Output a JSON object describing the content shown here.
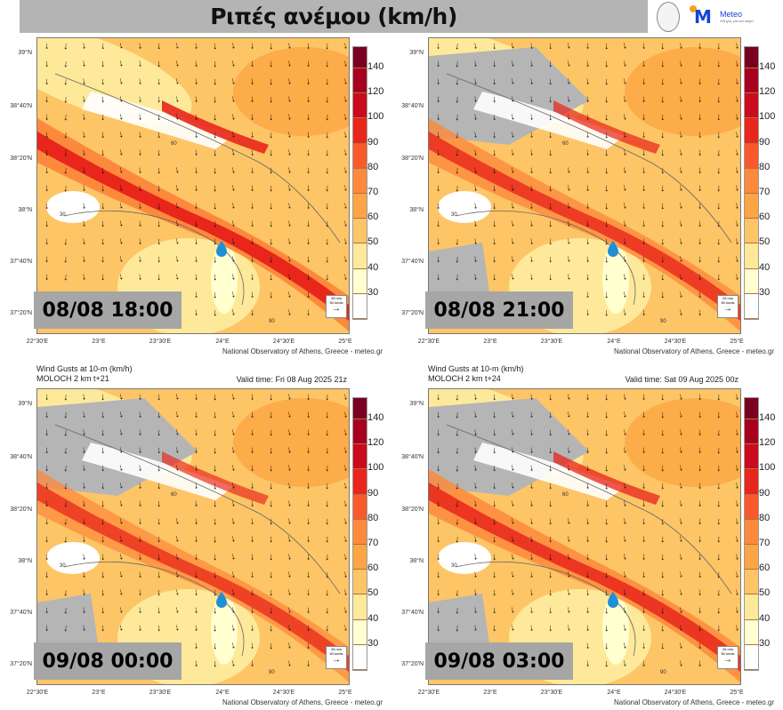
{
  "header": {
    "title": "Ριπές ανέμου (km/h)",
    "logo_text": "Meteo",
    "logo_sub": "Οδηγός για τον καιρό"
  },
  "colorbar": {
    "levels": [
      "140",
      "120",
      "100",
      "90",
      "80",
      "70",
      "60",
      "50",
      "40",
      "30"
    ],
    "colors": [
      "#7a0020",
      "#a8001f",
      "#cc0a1e",
      "#e8261b",
      "#f85a2c",
      "#fd8a3c",
      "#fda544",
      "#fdc566",
      "#fee99a",
      "#ffffcf",
      "#ffffff"
    ]
  },
  "lat_labels": [
    "39°N",
    "38°40'N",
    "38°20'N",
    "38°N",
    "37°40'N",
    "37°20'N"
  ],
  "lon_labels": [
    "22°30'E",
    "23°E",
    "23°30'E",
    "24°E",
    "24°30'E",
    "25°E"
  ],
  "credit": "National Observatory of Athens, Greece - meteo.gr",
  "scale_label": {
    "ms": "26 m/s",
    "knots": "50 knots",
    "arrow": "→"
  },
  "contour_labels": [
    "30",
    "60",
    "90"
  ],
  "panels": [
    {
      "date": "08/08 18:00"
    },
    {
      "date": "08/08 21:00"
    },
    {
      "date": "09/08 00:00",
      "title1": "Wind Gusts at 10-m (km/h)",
      "title2": "MOLOCH 2 km t+21",
      "valid": "Valid time: Fri 08 Aug 2025 21z"
    },
    {
      "date": "09/08 03:00",
      "title1": "Wind Gusts at 10-m (km/h)",
      "title2": "MOLOCH 2 km t+24",
      "valid": "Valid time: Sat 09 Aug 2025 00z"
    }
  ],
  "colors": {
    "land_low": "#fee3a0",
    "sea_gray": "#b5b5b5",
    "marker": "#1f8fd6"
  }
}
